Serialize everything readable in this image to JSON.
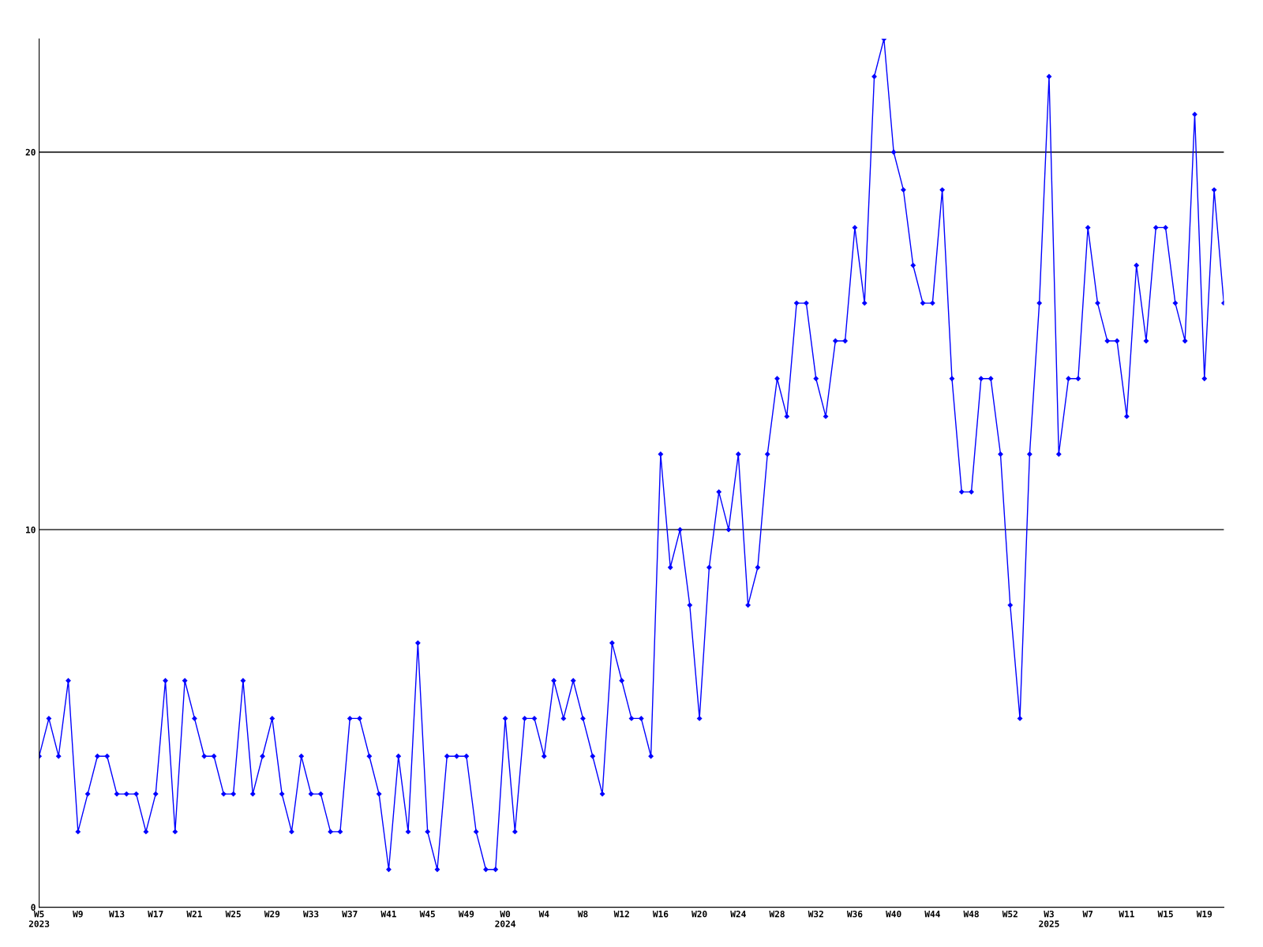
{
  "chart_data": {
    "type": "line",
    "categories": [
      "W5\n2023",
      null,
      null,
      null,
      "W9",
      null,
      null,
      null,
      "W13",
      null,
      null,
      null,
      "W17",
      null,
      null,
      null,
      "W21",
      null,
      null,
      null,
      "W25",
      null,
      null,
      null,
      "W29",
      null,
      null,
      null,
      "W33",
      null,
      null,
      null,
      "W37",
      null,
      null,
      null,
      "W41",
      null,
      null,
      null,
      "W45",
      null,
      null,
      null,
      "W49",
      null,
      null,
      null,
      "W0\n2024",
      null,
      null,
      null,
      "W4",
      null,
      null,
      null,
      "W8",
      null,
      null,
      null,
      "W12",
      null,
      null,
      null,
      "W16",
      null,
      null,
      null,
      "W20",
      null,
      null,
      null,
      "W24",
      null,
      null,
      null,
      "W28",
      null,
      null,
      null,
      "W32",
      null,
      null,
      null,
      "W36",
      null,
      null,
      null,
      "W40",
      null,
      null,
      null,
      "W44",
      null,
      null,
      null,
      "W48",
      null,
      null,
      null,
      "W52",
      null,
      null,
      null,
      "W3\n2025",
      null,
      null,
      null,
      "W7",
      null,
      null,
      null,
      "W11",
      null,
      null,
      null,
      "W15",
      null,
      null,
      null,
      "W19",
      null,
      null
    ],
    "series": [
      {
        "color": "#0000ff",
        "values": [
          4,
          5,
          4,
          6,
          2,
          3,
          4,
          4,
          3,
          3,
          3,
          2,
          3,
          6,
          2,
          6,
          5,
          4,
          4,
          3,
          3,
          6,
          3,
          4,
          5,
          3,
          2,
          4,
          3,
          3,
          2,
          2,
          5,
          5,
          4,
          3,
          1,
          4,
          2,
          7,
          2,
          1,
          4,
          4,
          4,
          2,
          1,
          1,
          5,
          2,
          5,
          5,
          4,
          6,
          5,
          6,
          5,
          4,
          3,
          7,
          6,
          5,
          5,
          4,
          12,
          9,
          10,
          8,
          5,
          9,
          11,
          10,
          12,
          8,
          9,
          12,
          14,
          13,
          16,
          16,
          14,
          13,
          15,
          15,
          18,
          16,
          22,
          23,
          20,
          19,
          17,
          16,
          16,
          19,
          14,
          11,
          11,
          14,
          14,
          12,
          8,
          5,
          12,
          16,
          22,
          12,
          14,
          14,
          18,
          16,
          15,
          15,
          13,
          17,
          15,
          18,
          18,
          16,
          15,
          21,
          14,
          19,
          16
        ]
      }
    ],
    "ylim": [
      0,
      23
    ],
    "yticks": [
      0,
      10,
      20
    ],
    "grid": "y",
    "marker": "diamond",
    "line_style": "solid"
  }
}
